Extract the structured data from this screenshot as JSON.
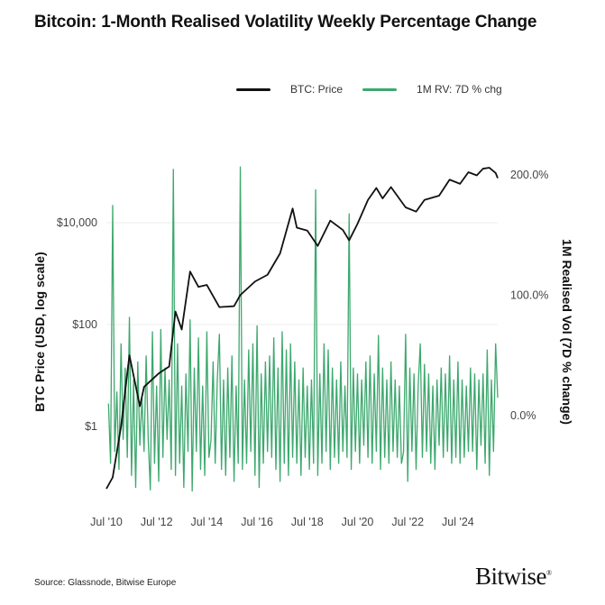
{
  "title": "Bitcoin: 1-Month Realised Volatility Weekly Percentage Change",
  "source": "Source: Glassnode, Bitwise Europe",
  "logo": "Bitwise",
  "colors": {
    "price": "#111111",
    "vol": "#3da86e",
    "grid": "#eeeeee"
  },
  "chart_data": {
    "type": "line",
    "title": "Bitcoin: 1-Month Realised Volatility Weekly Percentage Change",
    "legend": [
      {
        "name": "BTC: Price",
        "color": "#111111"
      },
      {
        "name": "1M RV: 7D % chg",
        "color": "#3da86e"
      }
    ],
    "legend_placement": "top",
    "grid": true,
    "x_ticks": [
      "Jul '10",
      "Jul '12",
      "Jul '14",
      "Jul '16",
      "Jul '18",
      "Jul '20",
      "Jul '22",
      "Jul '24"
    ],
    "x_tick_dates": [
      "2010-07",
      "2012-07",
      "2014-07",
      "2016-07",
      "2018-07",
      "2020-07",
      "2022-07",
      "2024-07"
    ],
    "xlim": [
      "2010-07",
      "2026-02"
    ],
    "y_left": {
      "label": "BTC Price (USD, log scale)",
      "scale": "log",
      "ticks": [
        "$1",
        "$100",
        "$10,000"
      ],
      "tick_values": [
        1,
        100,
        10000
      ]
    },
    "y_right": {
      "label": "1M Realised Vol (7D % change)",
      "ticks": [
        "0.0%",
        "100.0%",
        "200.0%"
      ],
      "tick_values": [
        0,
        100,
        200
      ]
    },
    "series": [
      {
        "name": "BTC: Price",
        "axis": "left",
        "points": [
          [
            "2010-07",
            0.06
          ],
          [
            "2010-10",
            0.1
          ],
          [
            "2011-02",
            1
          ],
          [
            "2011-06",
            25
          ],
          [
            "2011-11",
            2.5
          ],
          [
            "2012-01",
            6
          ],
          [
            "2012-08",
            11
          ],
          [
            "2013-01",
            15
          ],
          [
            "2013-04",
            180
          ],
          [
            "2013-07",
            80
          ],
          [
            "2013-11",
            1100
          ],
          [
            "2014-03",
            550
          ],
          [
            "2014-07",
            600
          ],
          [
            "2015-01",
            220
          ],
          [
            "2015-08",
            230
          ],
          [
            "2015-11",
            380
          ],
          [
            "2016-06",
            700
          ],
          [
            "2016-12",
            950
          ],
          [
            "2017-06",
            2500
          ],
          [
            "2017-12",
            19000
          ],
          [
            "2018-02",
            8000
          ],
          [
            "2018-07",
            7000
          ],
          [
            "2018-12",
            3500
          ],
          [
            "2019-06",
            11000
          ],
          [
            "2019-12",
            7200
          ],
          [
            "2020-03",
            4500
          ],
          [
            "2020-07",
            9500
          ],
          [
            "2020-12",
            28000
          ],
          [
            "2021-04",
            48000
          ],
          [
            "2021-07",
            30000
          ],
          [
            "2021-11",
            50000
          ],
          [
            "2022-06",
            20000
          ],
          [
            "2022-11",
            16500
          ],
          [
            "2023-03",
            28000
          ],
          [
            "2023-10",
            34000
          ],
          [
            "2024-03",
            70000
          ],
          [
            "2024-08",
            58000
          ],
          [
            "2024-12",
            98000
          ],
          [
            "2025-04",
            85000
          ],
          [
            "2025-07",
            115000
          ],
          [
            "2025-10",
            120000
          ],
          [
            "2026-01",
            95000
          ],
          [
            "2026-02",
            75000
          ]
        ]
      },
      {
        "name": "1M RV: 7D % chg",
        "axis": "right",
        "start": "2010-08",
        "frequency": "monthly",
        "values": [
          10,
          -40,
          175,
          -30,
          20,
          -45,
          60,
          -20,
          40,
          -35,
          82,
          -50,
          30,
          -60,
          45,
          -25,
          15,
          -30,
          50,
          -20,
          -62,
          70,
          -40,
          25,
          -55,
          72,
          -35,
          40,
          -20,
          30,
          -45,
          205,
          -50,
          60,
          -40,
          25,
          -60,
          35,
          -30,
          80,
          -63,
          40,
          -30,
          65,
          -45,
          25,
          -50,
          70,
          -35,
          -20,
          45,
          -40,
          30,
          68,
          -45,
          30,
          -50,
          40,
          -35,
          50,
          -55,
          25,
          -40,
          207,
          -45,
          30,
          -40,
          55,
          -30,
          60,
          -50,
          75,
          -60,
          35,
          -40,
          45,
          -30,
          50,
          -35,
          65,
          -45,
          40,
          -55,
          70,
          -40,
          55,
          -50,
          60,
          -35,
          45,
          -40,
          30,
          -50,
          40,
          -35,
          25,
          -45,
          30,
          -40,
          188,
          -50,
          35,
          -40,
          60,
          -30,
          55,
          -45,
          40,
          -35,
          30,
          -40,
          45,
          -30,
          25,
          -35,
          168,
          -45,
          40,
          -30,
          35,
          -40,
          30,
          -25,
          45,
          -35,
          50,
          -40,
          35,
          -30,
          67,
          -45,
          40,
          -35,
          30,
          -40,
          45,
          -30,
          30,
          -35,
          25,
          -40,
          -30,
          68,
          -55,
          40,
          -30,
          35,
          -45,
          25,
          60,
          -35,
          43,
          -30,
          35,
          -40,
          25,
          -45,
          30,
          -25,
          40,
          -35,
          35,
          -30,
          50,
          -40,
          30,
          -35,
          45,
          -40,
          30,
          -35,
          25,
          -30,
          40,
          -30,
          35,
          -45,
          30,
          -25,
          35,
          -40,
          55,
          -50,
          30,
          -30,
          60,
          15
        ]
      }
    ]
  }
}
